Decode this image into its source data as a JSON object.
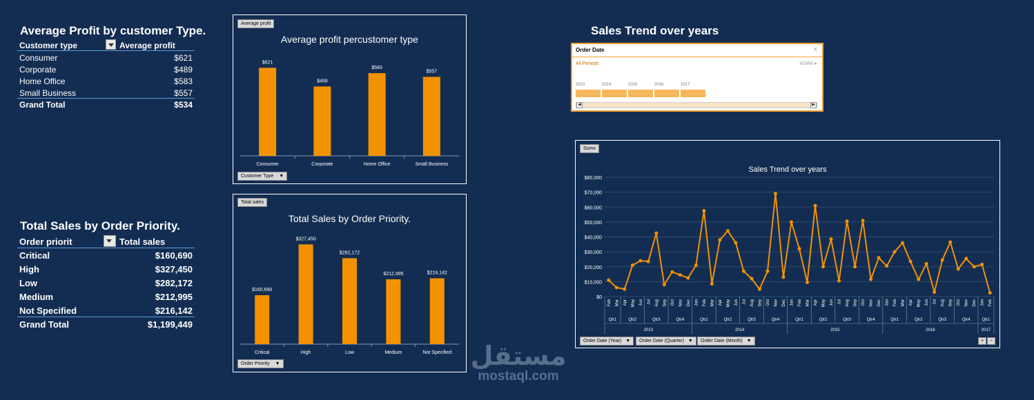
{
  "profit_table": {
    "title": "Average Profit by customer Type.",
    "col1": "Customer type",
    "col2": "Average profit",
    "rows": [
      {
        "label": "Consumer",
        "value": "$621"
      },
      {
        "label": "Corporate",
        "value": "$489"
      },
      {
        "label": "Home Office",
        "value": "$583"
      },
      {
        "label": "Small Business",
        "value": "$557"
      }
    ],
    "total_label": "Grand Total",
    "total_value": "$534"
  },
  "sales_table": {
    "title": "Total Sales by Order Priority.",
    "col1": "Order priorit",
    "col2": "Total sales",
    "rows": [
      {
        "label": "Critical",
        "value": "$160,690"
      },
      {
        "label": "High",
        "value": "$327,450"
      },
      {
        "label": "Low",
        "value": "$282,172"
      },
      {
        "label": "Medium",
        "value": "$212,995"
      },
      {
        "label": "Not Specified",
        "value": "$216,142"
      }
    ],
    "total_label": "Grand Total",
    "total_value": "$1,199,449"
  },
  "profit_chart": {
    "tag": "Average profit",
    "filter": "Customer Type"
  },
  "sales_chart": {
    "tag": "Total sales",
    "filter": "Order Priority"
  },
  "trend_section_title": "Sales Trend over years",
  "slicer": {
    "header": "Order Date",
    "periods": "All Periods",
    "level": "YEARS",
    "years": [
      "2013",
      "2014",
      "2015",
      "2016",
      "2017"
    ]
  },
  "trend_chart": {
    "tag": "Sumx",
    "filters": [
      "Order Date (Year)",
      "Order Date (Quarter)",
      "Order Date (Month)"
    ]
  },
  "colors": {
    "bar": "#f39200",
    "background": "#132d52"
  },
  "chart_data": [
    {
      "type": "bar",
      "title": "Average profit percustomer type",
      "categories": [
        "Consumer",
        "Corporate",
        "Home Office",
        "Small Business"
      ],
      "values": [
        621,
        489,
        583,
        557
      ],
      "data_labels": [
        "$621",
        "$489",
        "$583",
        "$557"
      ],
      "ylim": [
        0,
        700
      ]
    },
    {
      "type": "bar",
      "title": "Total Sales by Order Priority.",
      "categories": [
        "Critical",
        "High",
        "Low",
        "Medium",
        "Not Specified"
      ],
      "values": [
        160690,
        327450,
        282172,
        212995,
        216142
      ],
      "data_labels": [
        "$160,690",
        "$327,450",
        "$282,172",
        "$212,995",
        "$216,142"
      ],
      "ylim": [
        0,
        360000
      ]
    },
    {
      "type": "line",
      "title": "Sales Trend over years",
      "ylim": [
        0,
        80000
      ],
      "yticks": [
        "$0",
        "$10,000",
        "$20,000",
        "$30,000",
        "$40,000",
        "$50,000",
        "$60,000",
        "$70,000",
        "$80,000"
      ],
      "months": [
        "Feb",
        "Mar",
        "Apr",
        "May",
        "Jun",
        "Jul",
        "Aug",
        "Sep",
        "Oct",
        "Nov",
        "Dec",
        "Jan",
        "Feb",
        "Mar",
        "Apr",
        "May",
        "Jun",
        "Jul",
        "Aug",
        "Sep",
        "Oct",
        "Nov",
        "Dec",
        "Jan",
        "Feb",
        "Mar",
        "Apr",
        "May",
        "Jun",
        "Jul",
        "Aug",
        "Sep",
        "Oct",
        "Nov",
        "Dec",
        "Jan",
        "Feb",
        "Mar",
        "Apr",
        "May",
        "Jun",
        "Jul",
        "Aug",
        "Sep",
        "Oct",
        "Nov",
        "Dec",
        "Jan",
        "Feb"
      ],
      "values": [
        11000,
        6000,
        5000,
        21000,
        24000,
        23500,
        42500,
        8000,
        16500,
        14500,
        12500,
        21000,
        57500,
        8500,
        38000,
        44000,
        36000,
        17000,
        12000,
        5000,
        17000,
        69000,
        13000,
        50000,
        32000,
        9500,
        61000,
        20000,
        38500,
        10500,
        50500,
        20000,
        51000,
        11500,
        26000,
        20500,
        30000,
        36000,
        23500,
        11500,
        22000,
        3000,
        24500,
        36500,
        18500,
        25500,
        20000,
        21500,
        2500
      ],
      "quarters": [
        {
          "label": "Qtr1",
          "count": 2
        },
        {
          "label": "Qtr2",
          "count": 3
        },
        {
          "label": "Qtr3",
          "count": 3
        },
        {
          "label": "Qtr4",
          "count": 3
        },
        {
          "label": "Qtr1",
          "count": 3
        },
        {
          "label": "Qtr2",
          "count": 3
        },
        {
          "label": "Qtr3",
          "count": 3
        },
        {
          "label": "Qtr4",
          "count": 3
        },
        {
          "label": "Qtr1",
          "count": 3
        },
        {
          "label": "Qtr2",
          "count": 3
        },
        {
          "label": "Qtr3",
          "count": 3
        },
        {
          "label": "Qtr4",
          "count": 3
        },
        {
          "label": "Qtr1",
          "count": 3
        },
        {
          "label": "Qtr2",
          "count": 3
        },
        {
          "label": "Qtr3",
          "count": 3
        },
        {
          "label": "Qtr4",
          "count": 3
        },
        {
          "label": "Qtr1",
          "count": 2
        }
      ],
      "years": [
        {
          "label": "2013",
          "count": 11
        },
        {
          "label": "2014",
          "count": 12
        },
        {
          "label": "2015",
          "count": 12
        },
        {
          "label": "2016",
          "count": 12
        },
        {
          "label": "2017",
          "count": 2
        }
      ]
    }
  ],
  "watermark": {
    "arabic": "مستقل",
    "latin": "mostaql.com"
  }
}
